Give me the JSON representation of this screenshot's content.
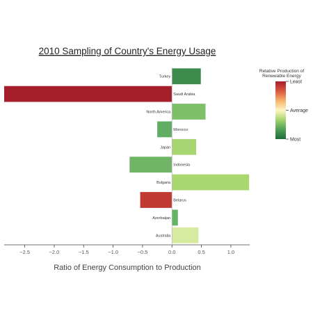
{
  "chart_data": {
    "type": "bar",
    "orientation": "horizontal",
    "title": "2010 Sampling of Country's Energy Usage",
    "xlabel": "Ratio of Energy Consumption to Production",
    "ylabel": "",
    "xlim": [
      -2.85,
      1.32
    ],
    "xticks": [
      -2.5,
      -2.0,
      -1.5,
      -1.0,
      -0.5,
      0.0,
      0.5,
      1.0
    ],
    "xtick_labels": [
      "−2.5",
      "−2.0",
      "−1.5",
      "−1.0",
      "−0.5",
      "0.0",
      "0.5",
      "1.0"
    ],
    "categories": [
      "Turkey",
      "Saudi Arabia",
      "North America",
      "Morocco",
      "Japan",
      "Indonesia",
      "Bulgaria",
      "Belarus",
      "Azerbaijan",
      "Australia"
    ],
    "values": [
      0.49,
      -2.85,
      0.57,
      -0.25,
      0.41,
      -0.72,
      1.31,
      -0.54,
      0.1,
      0.45
    ],
    "bar_colors": [
      "#3d8c4e",
      "#a41e2c",
      "#7ec06a",
      "#62ad64",
      "#a6d572",
      "#6fb565",
      "#a8d66f",
      "#c03a32",
      "#66b266",
      "#d7eba0"
    ],
    "grid": false,
    "colorbar": {
      "title_lines": [
        "Relative Production of",
        "Renewable Energy"
      ],
      "labels": [
        "Least",
        "Average",
        "Most"
      ],
      "colors_top_to_bottom": [
        "#a81e2e",
        "#d9573f",
        "#f5b36a",
        "#fdf5c2",
        "#a4d46f",
        "#4f9f57",
        "#1f6b3b"
      ]
    }
  }
}
